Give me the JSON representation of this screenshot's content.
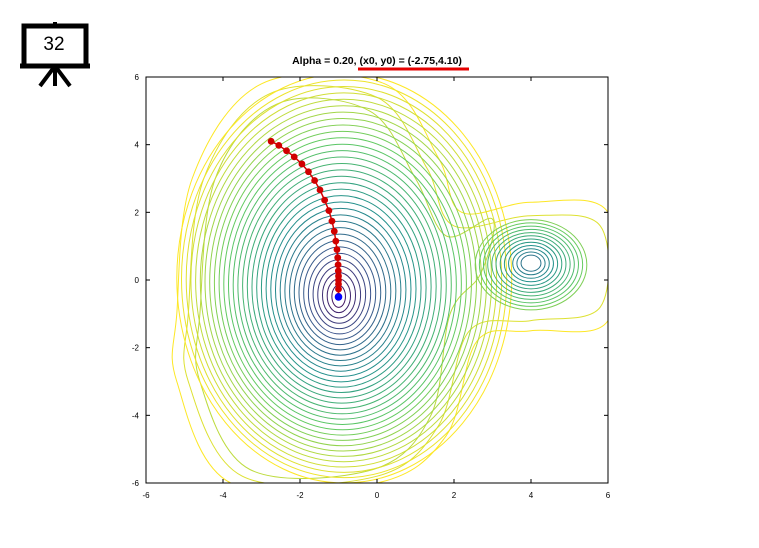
{
  "slide": {
    "number": "32",
    "icon": "presentation-easel-icon"
  },
  "chart_data": {
    "type": "contour",
    "title_prefix": "Alpha = 0.20, ",
    "title_highlight": "(x0, y0) = (-2.75,4.10)",
    "highlight_color": "#e60000",
    "xlim": [
      -6,
      6
    ],
    "ylim": [
      -6,
      6
    ],
    "xticks": [
      -6,
      -4,
      -2,
      0,
      2,
      4,
      6
    ],
    "yticks": [
      -6,
      -4,
      -2,
      0,
      2,
      4,
      6
    ],
    "grid": false,
    "colormap": [
      "#440154",
      "#3b528b",
      "#21918c",
      "#5ec962",
      "#fde725"
    ],
    "contours": {
      "main_minimum": [
        -1.0,
        -0.5
      ],
      "secondary_minimum": [
        4.0,
        0.5
      ]
    },
    "descent_path": {
      "color": "#d00000",
      "end_color": "#0000ff",
      "x": [
        -2.75,
        -2.55,
        -2.35,
        -2.15,
        -1.95,
        -1.78,
        -1.62,
        -1.48,
        -1.36,
        -1.25,
        -1.17,
        -1.11,
        -1.07,
        -1.04,
        -1.02,
        -1.01,
        -1.005,
        -1.0,
        -1.0,
        -1.0,
        -1.0,
        -1.0
      ],
      "y": [
        4.1,
        3.98,
        3.82,
        3.64,
        3.43,
        3.2,
        2.94,
        2.66,
        2.36,
        2.05,
        1.74,
        1.44,
        1.15,
        0.9,
        0.66,
        0.45,
        0.27,
        0.12,
        0.0,
        -0.12,
        -0.27,
        -0.48
      ],
      "end_point": [
        -1.0,
        -0.5
      ]
    }
  }
}
